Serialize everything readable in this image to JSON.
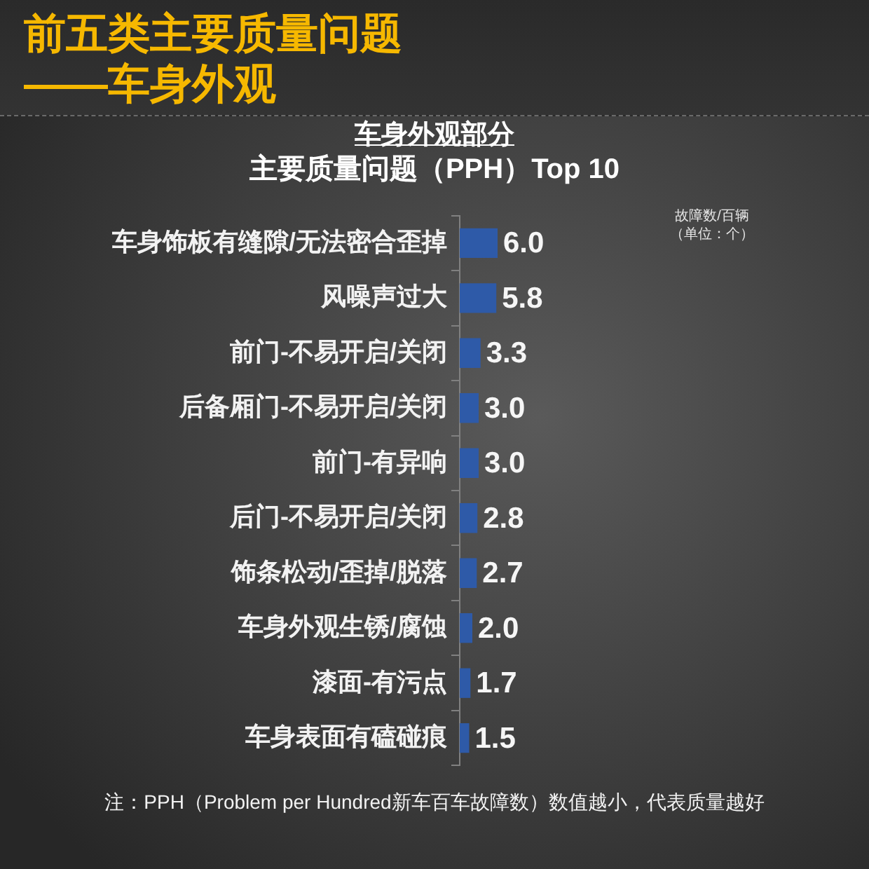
{
  "chart_data": {
    "type": "bar",
    "orientation": "horizontal",
    "title": "前五类主要质量问题——车身外观",
    "subtitle": "主要质量问题（PPH）Top 10",
    "categories": [
      "车身饰板有缝隙/无法密合歪掉",
      "风噪声过大",
      "前门-不易开启/关闭",
      "后备厢门-不易开启/关闭",
      "前门-有异响",
      "后门-不易开启/关闭",
      "饰条松动/歪掉/脱落",
      "车身外观生锈/腐蚀",
      "漆面-有污点",
      "车身表面有磕碰痕"
    ],
    "values": [
      6.0,
      5.8,
      3.3,
      3.0,
      3.0,
      2.8,
      2.7,
      2.0,
      1.7,
      1.5
    ],
    "value_labels": [
      "6.0",
      "5.8",
      "3.3",
      "3.0",
      "3.0",
      "2.8",
      "2.7",
      "2.0",
      "1.7",
      "1.5"
    ],
    "color": "#2e5aa8",
    "tick_labels": "y",
    "annotations": [
      "车身外观部分",
      "故障数/百辆（单位：个）",
      "注：PPH（Problem per Hundred新车百车故障数）数值越小，代表质量越好"
    ]
  }
}
